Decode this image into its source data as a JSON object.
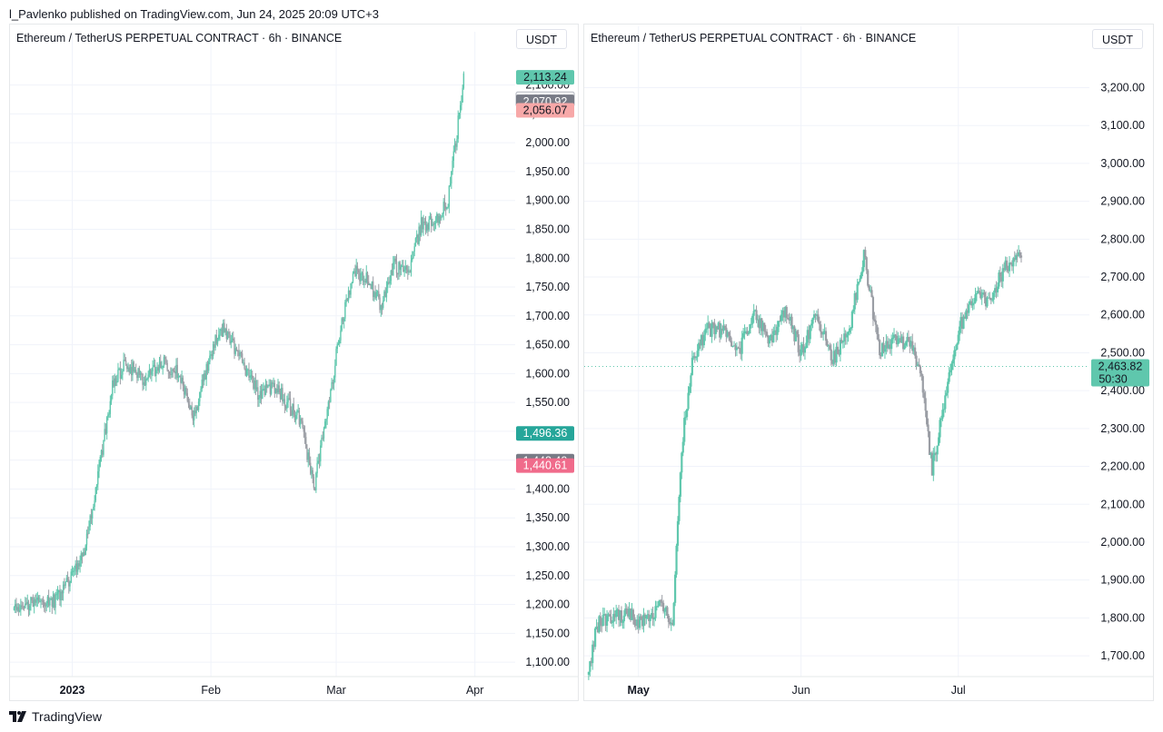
{
  "publisher_line": "l_Pavlenko published on TradingView.com, Jun 24, 2025 20:09 UTC+3",
  "footer": {
    "brand": "TradingView"
  },
  "colors": {
    "up": "#5fc7ad",
    "down": "#9b9ea5",
    "teal_badge": "#26a69a",
    "gray_badge": "#787b86",
    "red_badge": "#f7a8a8",
    "pink_badge": "#f06b8b"
  },
  "chart_data": [
    {
      "type": "candlestick",
      "title": "Ethereum / TetherUS PERPETUAL CONTRACT · 6h · BINANCE",
      "currency": "USDT",
      "ylim": [
        1075,
        2145
      ],
      "y_ticks": [
        1100,
        1150,
        1200,
        1250,
        1300,
        1350,
        1400,
        1450,
        1500,
        1550,
        1600,
        1650,
        1700,
        1750,
        1800,
        1850,
        1900,
        1950,
        2000,
        2050,
        2100
      ],
      "y_tick_labels": [
        "1,100.00",
        "1,150.00",
        "1,200.00",
        "1,250.00",
        "1,300.00",
        "1,350.00",
        "1,400.00",
        "1,450.00",
        "1,500.00",
        "1,550.00",
        "1,600.00",
        "1,650.00",
        "1,700.00",
        "1,750.00",
        "1,800.00",
        "1,850.00",
        "1,900.00",
        "1,950.00",
        "2,000.00",
        "2,050.00",
        "2,100.00"
      ],
      "x_labels": [
        {
          "label": "2023",
          "bold": true,
          "at_day": 13
        },
        {
          "label": "Feb",
          "bold": false,
          "at_day": 44
        },
        {
          "label": "Mar",
          "bold": false,
          "at_day": 72
        },
        {
          "label": "Apr",
          "bold": false,
          "at_day": 103
        }
      ],
      "x_range_days": [
        -0.5,
        112
      ],
      "trend": [
        {
          "d": 0,
          "p": 1190
        },
        {
          "d": 5,
          "p": 1210
        },
        {
          "d": 9,
          "p": 1205
        },
        {
          "d": 13,
          "p": 1250
        },
        {
          "d": 16,
          "p": 1300
        },
        {
          "d": 19,
          "p": 1430
        },
        {
          "d": 22,
          "p": 1580
        },
        {
          "d": 25,
          "p": 1620
        },
        {
          "d": 29,
          "p": 1585
        },
        {
          "d": 33,
          "p": 1620
        },
        {
          "d": 37,
          "p": 1600
        },
        {
          "d": 40,
          "p": 1520
        },
        {
          "d": 44,
          "p": 1640
        },
        {
          "d": 47,
          "p": 1680
        },
        {
          "d": 51,
          "p": 1620
        },
        {
          "d": 55,
          "p": 1560
        },
        {
          "d": 58,
          "p": 1580
        },
        {
          "d": 61,
          "p": 1550
        },
        {
          "d": 64,
          "p": 1520
        },
        {
          "d": 67,
          "p": 1400
        },
        {
          "d": 70,
          "p": 1530
        },
        {
          "d": 73,
          "p": 1680
        },
        {
          "d": 76,
          "p": 1780
        },
        {
          "d": 79,
          "p": 1760
        },
        {
          "d": 82,
          "p": 1720
        },
        {
          "d": 85,
          "p": 1790
        },
        {
          "d": 88,
          "p": 1770
        },
        {
          "d": 91,
          "p": 1860
        },
        {
          "d": 94,
          "p": 1860
        },
        {
          "d": 97,
          "p": 1900
        },
        {
          "d": 99,
          "p": 2020
        },
        {
          "d": 100.5,
          "p": 2110
        }
      ],
      "badges": [
        {
          "label": "2,113.24",
          "value": 2113.24,
          "color": "#5fc7ad",
          "text_color": "#131722",
          "outline": false
        },
        {
          "label": "2,075.41",
          "value": 2075.41,
          "color": "#ffffff",
          "text_color": "#9b9ea5",
          "outline": true
        },
        {
          "label": "2,070.92",
          "value": 2070.92,
          "color": "#787b86",
          "text_color": "#ffffff",
          "outline": false
        },
        {
          "label": "2,056.07",
          "value": 2056.07,
          "color": "#f7a8a8",
          "text_color": "#131722",
          "outline": false
        },
        {
          "label": "1,496.36",
          "value": 1496.36,
          "color": "#26a69a",
          "text_color": "#ffffff",
          "outline": false
        },
        {
          "label": "1,448.40",
          "value": 1448.4,
          "color": "#787b86",
          "text_color": "#ffffff",
          "outline": false
        },
        {
          "label": "1,440.61",
          "value": 1440.61,
          "color": "#f06b8b",
          "text_color": "#ffffff",
          "outline": false
        }
      ]
    },
    {
      "type": "candlestick",
      "title": "Ethereum / TetherUS PERPETUAL CONTRACT · 6h · BINANCE",
      "currency": "USDT",
      "ylim": [
        1645,
        3290
      ],
      "y_ticks": [
        1700,
        1800,
        1900,
        2000,
        2100,
        2200,
        2300,
        2400,
        2500,
        2600,
        2700,
        2800,
        2900,
        3000,
        3100,
        3200
      ],
      "y_tick_labels": [
        "1,700.00",
        "1,800.00",
        "1,900.00",
        "2,000.00",
        "2,100.00",
        "2,200.00",
        "2,300.00",
        "2,400.00",
        "2,500.00",
        "2,600.00",
        "2,700.00",
        "2,800.00",
        "2,900.00",
        "3,000.00",
        "3,100.00",
        "3,200.00"
      ],
      "x_labels": [
        {
          "label": "May",
          "bold": true,
          "at_day": 0
        },
        {
          "label": "Jun",
          "bold": false,
          "at_day": 31
        },
        {
          "label": "Jul",
          "bold": false,
          "at_day": 61
        }
      ],
      "x_range_days": [
        -10,
        86
      ],
      "trend": [
        {
          "d": -9.5,
          "p": 1650
        },
        {
          "d": -8.5,
          "p": 1740
        },
        {
          "d": -7.5,
          "p": 1790
        },
        {
          "d": -5,
          "p": 1800
        },
        {
          "d": -2,
          "p": 1810
        },
        {
          "d": 0,
          "p": 1790
        },
        {
          "d": 2,
          "p": 1800
        },
        {
          "d": 4,
          "p": 1830
        },
        {
          "d": 6.5,
          "p": 1790
        },
        {
          "d": 7.5,
          "p": 2050
        },
        {
          "d": 8.5,
          "p": 2280
        },
        {
          "d": 10,
          "p": 2460
        },
        {
          "d": 13,
          "p": 2560
        },
        {
          "d": 16,
          "p": 2560
        },
        {
          "d": 19,
          "p": 2500
        },
        {
          "d": 22,
          "p": 2600
        },
        {
          "d": 25,
          "p": 2530
        },
        {
          "d": 28,
          "p": 2620
        },
        {
          "d": 31,
          "p": 2500
        },
        {
          "d": 34,
          "p": 2600
        },
        {
          "d": 37,
          "p": 2480
        },
        {
          "d": 40,
          "p": 2550
        },
        {
          "d": 43,
          "p": 2760
        },
        {
          "d": 46,
          "p": 2500
        },
        {
          "d": 49,
          "p": 2530
        },
        {
          "d": 52,
          "p": 2520
        },
        {
          "d": 54,
          "p": 2430
        },
        {
          "d": 56,
          "p": 2190
        },
        {
          "d": 58,
          "p": 2350
        },
        {
          "d": 61,
          "p": 2560
        },
        {
          "d": 64,
          "p": 2650
        },
        {
          "d": 67,
          "p": 2640
        },
        {
          "d": 70,
          "p": 2730
        },
        {
          "d": 73,
          "p": 2760
        }
      ],
      "price_line": 2463.82,
      "badges": [
        {
          "label": "2,463.82",
          "sub": "50:30",
          "value": 2463.82,
          "color": "#5fc7ad",
          "text_color": "#131722",
          "outline": false
        }
      ]
    }
  ]
}
